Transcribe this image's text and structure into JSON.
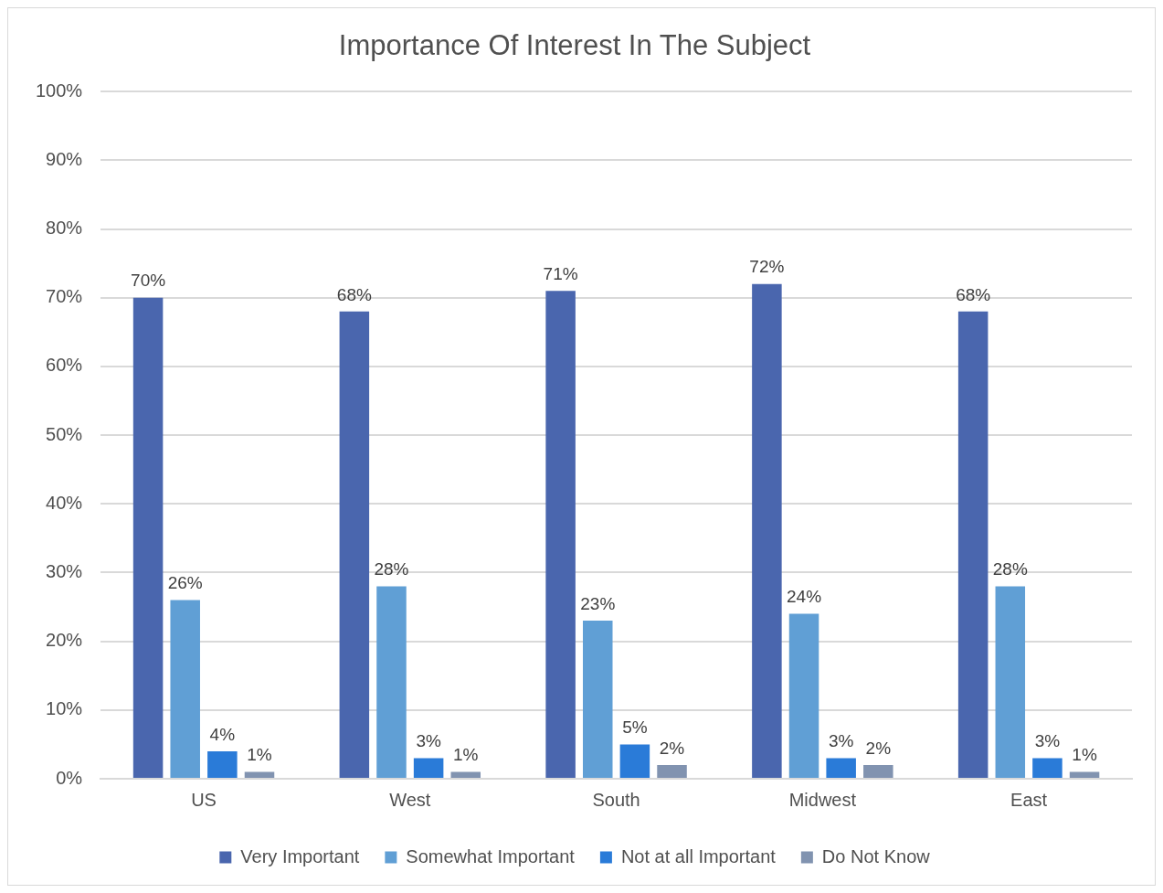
{
  "chart_data": {
    "type": "bar",
    "title": "Importance Of Interest In The Subject",
    "categories": [
      "US",
      "West",
      "South",
      "Midwest",
      "East"
    ],
    "series": [
      {
        "name": "Very Important",
        "color": "#4a66ae",
        "values": [
          70,
          68,
          71,
          72,
          68
        ],
        "value_labels": [
          "70%",
          "68%",
          "71%",
          "72%",
          "68%"
        ]
      },
      {
        "name": "Somewhat Important",
        "color": "#609fd5",
        "values": [
          26,
          28,
          23,
          24,
          28
        ],
        "value_labels": [
          "26%",
          "28%",
          "23%",
          "24%",
          "28%"
        ]
      },
      {
        "name": "Not at all Important",
        "color": "#2a7bd8",
        "values": [
          4,
          3,
          5,
          3,
          3
        ],
        "value_labels": [
          "4%",
          "3%",
          "5%",
          "3%",
          "3%"
        ]
      },
      {
        "name": "Do Not Know",
        "color": "#8193b0",
        "values": [
          1,
          1,
          2,
          2,
          1
        ],
        "value_labels": [
          "1%",
          "1%",
          "2%",
          "2%",
          "1%"
        ]
      }
    ],
    "ylim": [
      0,
      100
    ],
    "yticks": [
      {
        "value": 0,
        "label": "0%"
      },
      {
        "value": 10,
        "label": "10%"
      },
      {
        "value": 20,
        "label": "20%"
      },
      {
        "value": 30,
        "label": "30%"
      },
      {
        "value": 40,
        "label": "40%"
      },
      {
        "value": 50,
        "label": "50%"
      },
      {
        "value": 60,
        "label": "60%"
      },
      {
        "value": 70,
        "label": "70%"
      },
      {
        "value": 80,
        "label": "80%"
      },
      {
        "value": 90,
        "label": "90%"
      },
      {
        "value": 100,
        "label": "100%"
      }
    ],
    "grid": "y",
    "legend": "bottom"
  }
}
